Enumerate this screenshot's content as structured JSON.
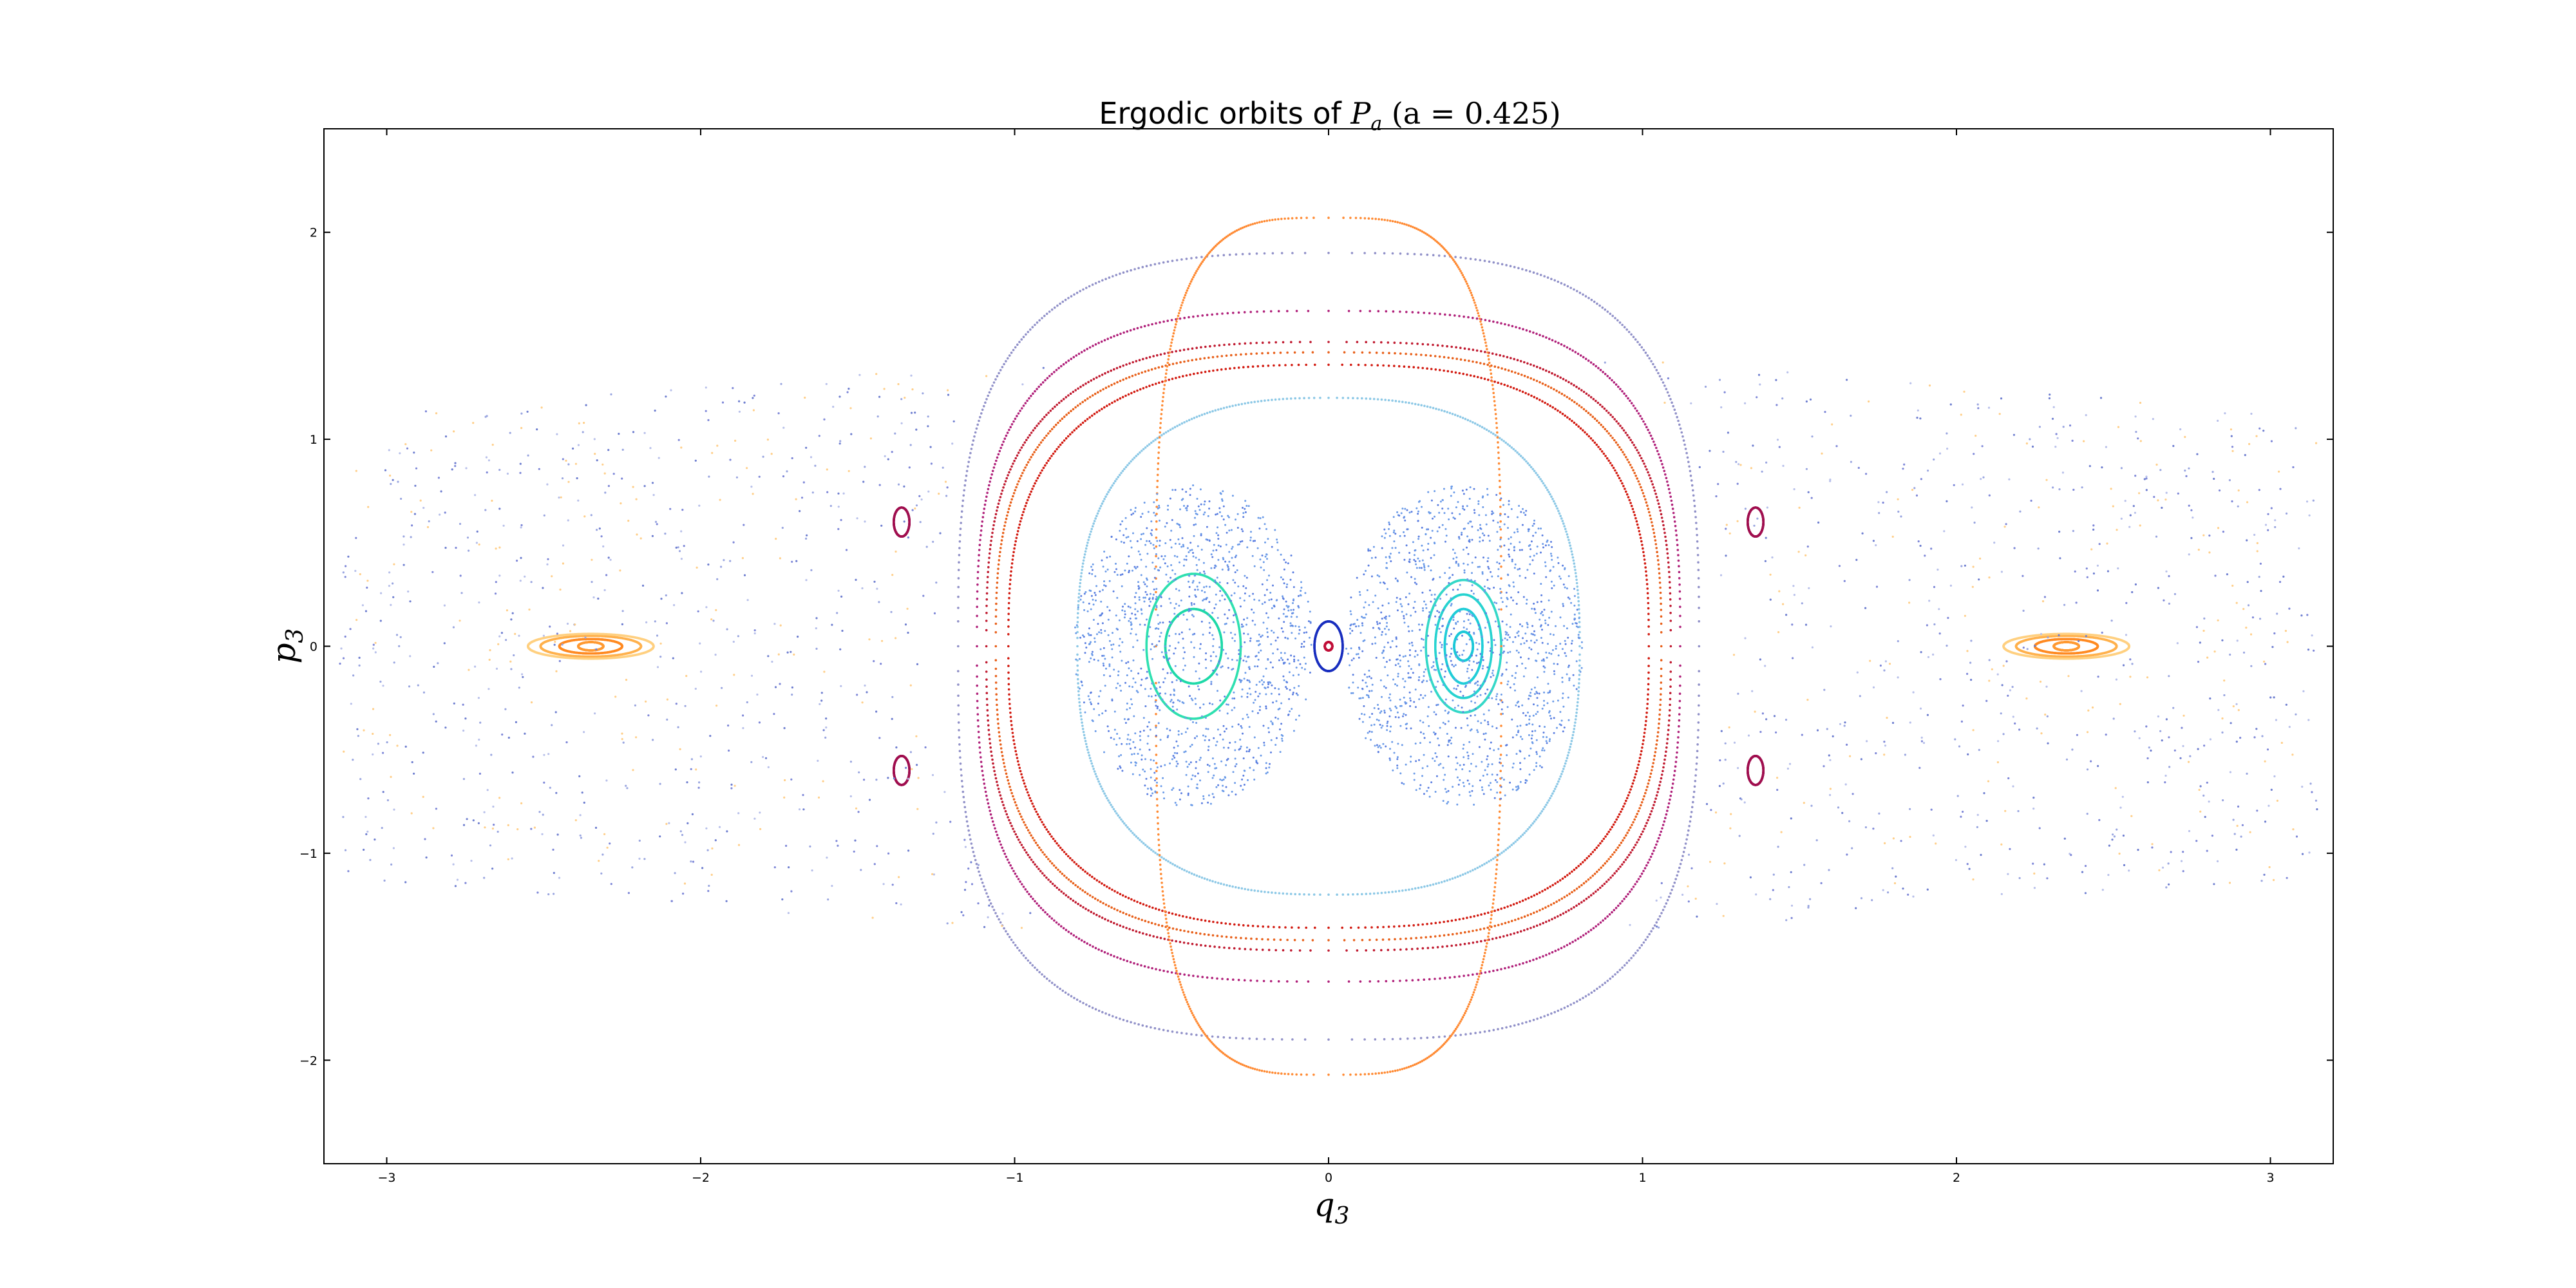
{
  "chart_data": {
    "type": "scatter",
    "title": {
      "prefix": "Ergodic orbits of ",
      "math_var": "P",
      "math_sub": "a",
      "math_rest": " (a = 0.425)"
    },
    "xlabel": {
      "var": "q",
      "sub": "3"
    },
    "ylabel": {
      "var": "p",
      "sub": "3"
    },
    "xlim": [
      -3.2,
      3.2
    ],
    "ylim": [
      -2.5,
      2.5
    ],
    "xticks": [
      -3,
      -2,
      -1,
      0,
      1,
      2,
      3
    ],
    "yticks": [
      -2,
      -1,
      0,
      1,
      2
    ],
    "xtick_labels": [
      "−3",
      "−2",
      "−1",
      "0",
      "1",
      "2",
      "3"
    ],
    "ytick_labels": [
      "−2",
      "−1",
      "0",
      "1",
      "2"
    ],
    "grid": false,
    "legend": false,
    "series": [
      {
        "kind": "ellipse",
        "color": "#1fd9a8",
        "cx": -0.43,
        "cy": 0.0,
        "rx": 0.09,
        "ry": 0.18
      },
      {
        "kind": "ellipse",
        "color": "#2fe0b0",
        "cx": -0.43,
        "cy": 0.0,
        "rx": 0.15,
        "ry": 0.35
      },
      {
        "kind": "ellipse",
        "color": "#1ec8d8",
        "cx": 0.43,
        "cy": 0.0,
        "rx": 0.03,
        "ry": 0.07
      },
      {
        "kind": "ellipse",
        "color": "#20cdd8",
        "cx": 0.43,
        "cy": 0.0,
        "rx": 0.06,
        "ry": 0.18
      },
      {
        "kind": "ellipse",
        "color": "#28d3d0",
        "cx": 0.43,
        "cy": 0.0,
        "rx": 0.09,
        "ry": 0.25
      },
      {
        "kind": "ellipse",
        "color": "#35d8c8",
        "cx": 0.43,
        "cy": 0.0,
        "rx": 0.12,
        "ry": 0.32
      },
      {
        "kind": "ellipse",
        "color": "#1a2fbf",
        "cx": 0.0,
        "cy": 0.0,
        "rx": 0.045,
        "ry": 0.12
      },
      {
        "kind": "ellipse",
        "color": "#c0103a",
        "cx": 0.0,
        "cy": 0.0,
        "rx": 0.012,
        "ry": 0.02
      },
      {
        "kind": "ellipse",
        "color": "#ff9a33",
        "cx": -2.35,
        "cy": 0.0,
        "rx": 0.04,
        "ry": 0.02
      },
      {
        "kind": "ellipse",
        "color": "#ff8a22",
        "cx": -2.35,
        "cy": 0.0,
        "rx": 0.1,
        "ry": 0.035
      },
      {
        "kind": "ellipse",
        "color": "#ffb14d",
        "cx": -2.35,
        "cy": 0.0,
        "rx": 0.16,
        "ry": 0.05
      },
      {
        "kind": "ellipse",
        "color": "#ffd080",
        "cx": -2.35,
        "cy": 0.0,
        "rx": 0.2,
        "ry": 0.06
      },
      {
        "kind": "ellipse",
        "color": "#ff9a33",
        "cx": 2.35,
        "cy": 0.0,
        "rx": 0.04,
        "ry": 0.02
      },
      {
        "kind": "ellipse",
        "color": "#ff8a22",
        "cx": 2.35,
        "cy": 0.0,
        "rx": 0.1,
        "ry": 0.035
      },
      {
        "kind": "ellipse",
        "color": "#ffb14d",
        "cx": 2.35,
        "cy": 0.0,
        "rx": 0.16,
        "ry": 0.05
      },
      {
        "kind": "ellipse",
        "color": "#ffd080",
        "cx": 2.35,
        "cy": 0.0,
        "rx": 0.2,
        "ry": 0.06
      },
      {
        "kind": "ellipse",
        "color": "#a01050",
        "cx": -1.36,
        "cy": 0.6,
        "rx": 0.025,
        "ry": 0.07
      },
      {
        "kind": "ellipse",
        "color": "#a01050",
        "cx": 1.36,
        "cy": 0.6,
        "rx": 0.025,
        "ry": 0.07
      },
      {
        "kind": "ellipse",
        "color": "#a01050",
        "cx": -1.36,
        "cy": -0.6,
        "rx": 0.025,
        "ry": 0.07
      },
      {
        "kind": "ellipse",
        "color": "#a01050",
        "cx": 1.36,
        "cy": -0.6,
        "rx": 0.025,
        "ry": 0.07
      },
      {
        "kind": "superellipse",
        "color": "#8cc8e6",
        "cx": 0.0,
        "cy": 0.0,
        "rx": 0.8,
        "ry": 1.2,
        "n": 2.6
      },
      {
        "kind": "superellipse",
        "color": "#d21a10",
        "cx": 0.0,
        "cy": 0.0,
        "rx": 1.02,
        "ry": 1.36,
        "n": 2.8
      },
      {
        "kind": "superellipse",
        "color": "#e8601a",
        "cx": 0.0,
        "cy": 0.0,
        "rx": 1.06,
        "ry": 1.42,
        "n": 2.9
      },
      {
        "kind": "superellipse",
        "color": "#c01a30",
        "cx": 0.0,
        "cy": 0.0,
        "rx": 1.09,
        "ry": 1.47,
        "n": 3.0
      },
      {
        "kind": "superellipse",
        "color": "#b0207a",
        "cx": 0.0,
        "cy": 0.0,
        "rx": 1.12,
        "ry": 1.62,
        "n": 3.1
      },
      {
        "kind": "superellipse",
        "color": "#9090c8",
        "cx": 0.0,
        "cy": 0.0,
        "rx": 1.18,
        "ry": 1.9,
        "n": 3.2
      },
      {
        "kind": "superellipse",
        "color": "#ff8a33",
        "cx": 0.0,
        "cy": 0.0,
        "rx": 0.55,
        "ry": 2.07,
        "n": 3.6
      }
    ]
  }
}
